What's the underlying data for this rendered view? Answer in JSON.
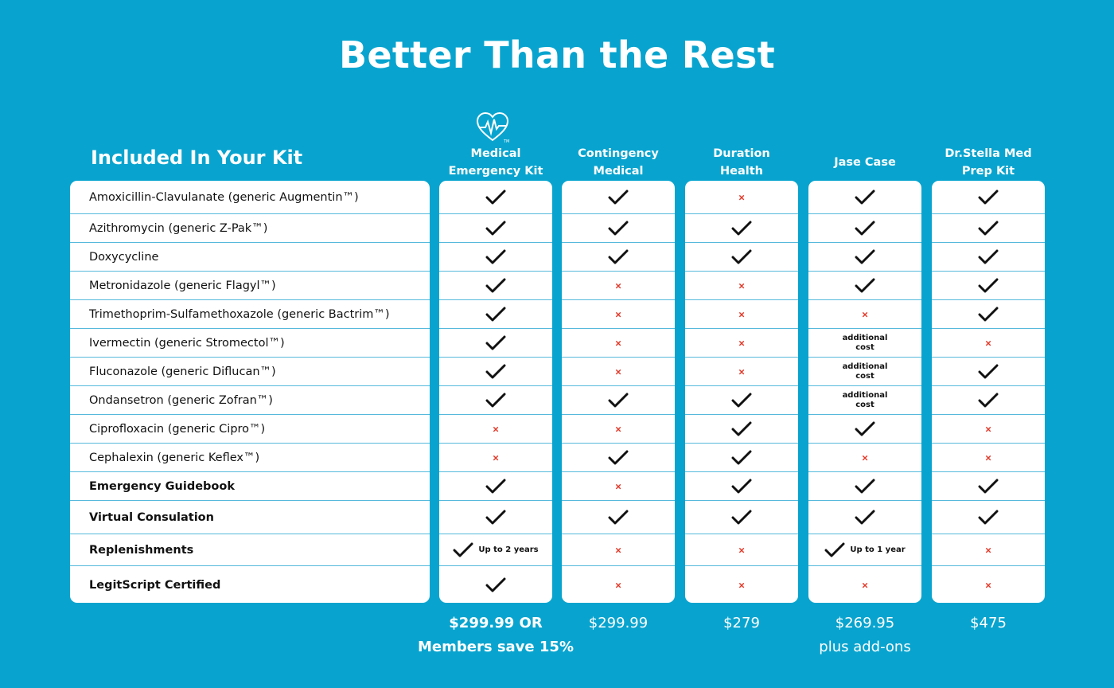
{
  "title": "Better Than the Rest",
  "kit_label": "Included In Your Kit",
  "columns": [
    {
      "name": "Medical\nEmergency Kit",
      "price": "$299.99 OR\nMembers save 15%"
    },
    {
      "name": "Contingency\nMedical",
      "price": "$299.99"
    },
    {
      "name": "Duration\nHealth",
      "price": "$279"
    },
    {
      "name": "Jase Case",
      "price": "$269.95\nplus add-ons"
    },
    {
      "name": "Dr.Stella Med\nPrep Kit",
      "price": "$475"
    }
  ],
  "rows": [
    {
      "label": "Amoxicillin-Clavulanate (generic Augmentin™)",
      "bold": false,
      "cells": [
        "check",
        "check",
        "cross",
        "check",
        "check"
      ]
    },
    {
      "label": "Azithromycin (generic Z-Pak™)",
      "bold": false,
      "cells": [
        "check",
        "check",
        "check",
        "check",
        "check"
      ]
    },
    {
      "label": "Doxycycline",
      "bold": false,
      "cells": [
        "check",
        "check",
        "check",
        "check",
        "check"
      ]
    },
    {
      "label": "Metronidazole (generic Flagyl™)",
      "bold": false,
      "cells": [
        "check",
        "cross",
        "cross",
        "check",
        "check"
      ]
    },
    {
      "label": "Trimethoprim-Sulfamethoxazole (generic Bactrim™)",
      "bold": false,
      "cells": [
        "check",
        "cross",
        "cross",
        "cross",
        "check"
      ]
    },
    {
      "label": "Ivermectin (generic Stromectol™)",
      "bold": false,
      "cells": [
        "check",
        "cross",
        "cross",
        "additional\ncost",
        "cross"
      ]
    },
    {
      "label": "Fluconazole (generic Diflucan™)",
      "bold": false,
      "cells": [
        "check",
        "cross",
        "cross",
        "additional\ncost",
        "check"
      ]
    },
    {
      "label": "Ondansetron (generic Zofran™)",
      "bold": false,
      "cells": [
        "check",
        "check",
        "check",
        "additional\ncost",
        "check"
      ]
    },
    {
      "label": "Ciprofloxacin (generic Cipro™)",
      "bold": false,
      "cells": [
        "cross",
        "cross",
        "check",
        "check",
        "cross"
      ]
    },
    {
      "label": "Cephalexin (generic Keflex™)",
      "bold": false,
      "cells": [
        "cross",
        "check",
        "check",
        "cross",
        "cross"
      ]
    },
    {
      "label": "Emergency Guidebook",
      "bold": true,
      "cells": [
        "check",
        "cross",
        "check",
        "check",
        "check"
      ]
    },
    {
      "label": "Virtual Consulation",
      "bold": true,
      "cells": [
        "check",
        "check",
        "check",
        "check",
        "check"
      ]
    },
    {
      "label": "Replenishments",
      "bold": true,
      "cells": [
        "check:Up to 2 years",
        "cross",
        "cross",
        "check:Up to 1 year",
        "cross"
      ]
    },
    {
      "label": "LegitScript Certified",
      "bold": true,
      "cells": [
        "check",
        "cross",
        "cross",
        "cross",
        "cross"
      ]
    }
  ],
  "symbols": {
    "cross": "×"
  },
  "colors": {
    "background": "#08a4cf",
    "check": "#111111",
    "cross": "#e23a2a",
    "divider": "#56b9dc"
  },
  "icons": {
    "logo": "heart-pulse-icon",
    "included": "check-icon",
    "not_included": "cross-icon"
  }
}
